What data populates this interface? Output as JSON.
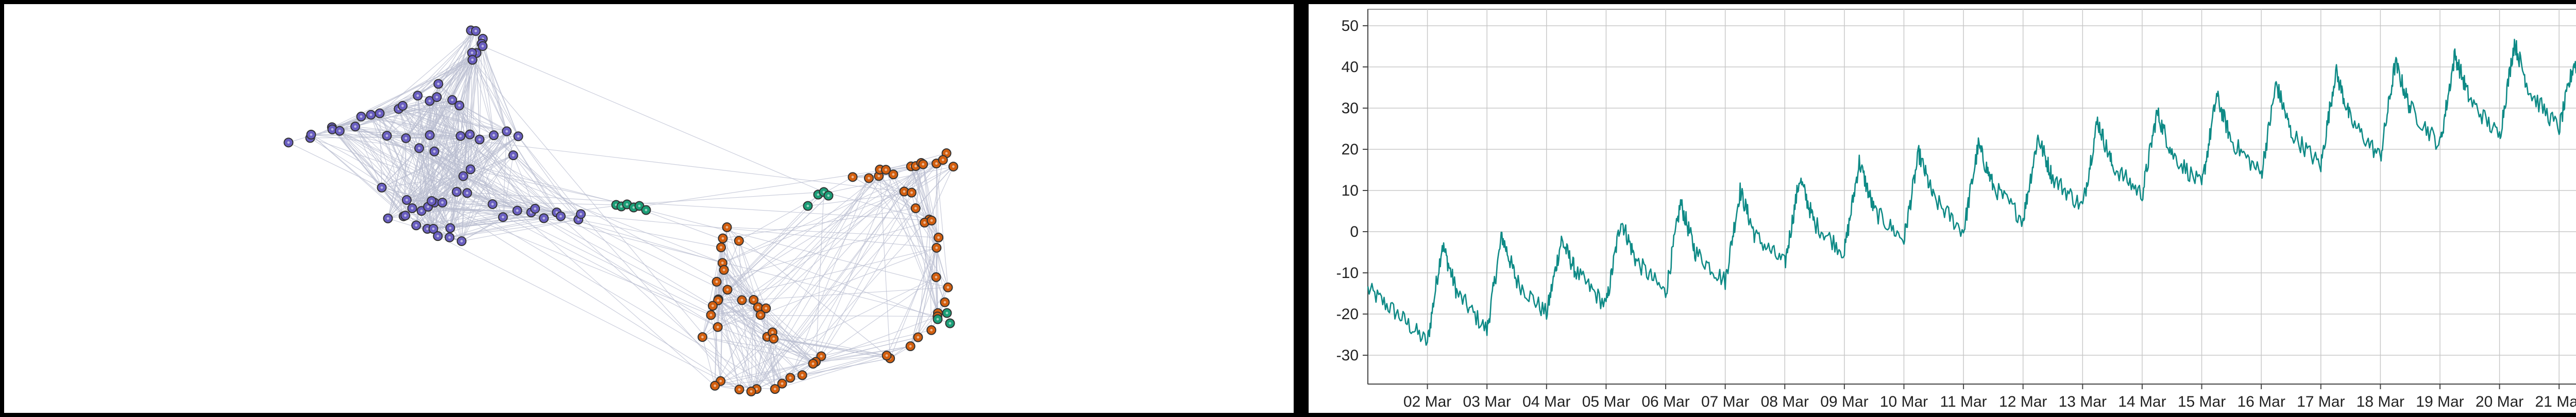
{
  "graph": {
    "colors": {
      "purple": "#6a5fc1",
      "orange": "#d35f0f",
      "green": "#1b9e77",
      "edge": "#b9bdd0",
      "outline": "#333333"
    }
  },
  "chart_data": {
    "type": "line",
    "title": "",
    "xlabel": "",
    "ylabel": "",
    "x_start": "2024-03-01",
    "x_end": "2024-03-21T12:00",
    "x_tick_labels": [
      "02 Mar",
      "03 Mar",
      "04 Mar",
      "05 Mar",
      "06 Mar",
      "07 Mar",
      "08 Mar",
      "09 Mar",
      "10 Mar",
      "11 Mar",
      "12 Mar",
      "13 Mar",
      "14 Mar",
      "15 Mar",
      "16 Mar",
      "17 Mar",
      "18 Mar",
      "19 Mar",
      "20 Mar",
      "21 Mar"
    ],
    "ylim": [
      -37,
      54
    ],
    "y_ticks": [
      -30,
      -20,
      -10,
      0,
      10,
      20,
      30,
      40,
      50
    ],
    "grid": true,
    "line_color": "#0e8a86",
    "series": [
      {
        "values": [
          {
            "x": "2024-03-01T00:00",
            "y": -14
          },
          {
            "x": "2024-03-01T12:00",
            "y": -20
          },
          {
            "x": "2024-03-02T00:00",
            "y": -27
          },
          {
            "x": "2024-03-02T06:00",
            "y": -3
          },
          {
            "x": "2024-03-02T12:00",
            "y": -15
          },
          {
            "x": "2024-03-03T00:00",
            "y": -24
          },
          {
            "x": "2024-03-03T06:00",
            "y": -1
          },
          {
            "x": "2024-03-03T12:00",
            "y": -12
          },
          {
            "x": "2024-03-04T00:00",
            "y": -20
          },
          {
            "x": "2024-03-04T06:00",
            "y": -2
          },
          {
            "x": "2024-03-04T12:00",
            "y": -10
          },
          {
            "x": "2024-03-05T00:00",
            "y": -18
          },
          {
            "x": "2024-03-05T06:00",
            "y": 3
          },
          {
            "x": "2024-03-05T12:00",
            "y": -7
          },
          {
            "x": "2024-03-06T00:00",
            "y": -15
          },
          {
            "x": "2024-03-06T06:00",
            "y": 7
          },
          {
            "x": "2024-03-06T12:00",
            "y": -5
          },
          {
            "x": "2024-03-07T00:00",
            "y": -12
          },
          {
            "x": "2024-03-07T06:00",
            "y": 10
          },
          {
            "x": "2024-03-07T12:00",
            "y": -1
          },
          {
            "x": "2024-03-08T00:00",
            "y": -8
          },
          {
            "x": "2024-03-08T06:00",
            "y": 13
          },
          {
            "x": "2024-03-08T12:00",
            "y": 2
          },
          {
            "x": "2024-03-09T00:00",
            "y": -5
          },
          {
            "x": "2024-03-09T06:00",
            "y": 17
          },
          {
            "x": "2024-03-09T12:00",
            "y": 5
          },
          {
            "x": "2024-03-10T00:00",
            "y": -2
          },
          {
            "x": "2024-03-10T06:00",
            "y": 19
          },
          {
            "x": "2024-03-10T12:00",
            "y": 8
          },
          {
            "x": "2024-03-11T00:00",
            "y": 0
          },
          {
            "x": "2024-03-11T06:00",
            "y": 21
          },
          {
            "x": "2024-03-11T12:00",
            "y": 11
          },
          {
            "x": "2024-03-12T00:00",
            "y": 3
          },
          {
            "x": "2024-03-12T06:00",
            "y": 23
          },
          {
            "x": "2024-03-12T12:00",
            "y": 13
          },
          {
            "x": "2024-03-13T00:00",
            "y": 6
          },
          {
            "x": "2024-03-13T06:00",
            "y": 27
          },
          {
            "x": "2024-03-13T12:00",
            "y": 16
          },
          {
            "x": "2024-03-14T00:00",
            "y": 9
          },
          {
            "x": "2024-03-14T06:00",
            "y": 29
          },
          {
            "x": "2024-03-14T12:00",
            "y": 19
          },
          {
            "x": "2024-03-15T00:00",
            "y": 11
          },
          {
            "x": "2024-03-15T06:00",
            "y": 33
          },
          {
            "x": "2024-03-15T12:00",
            "y": 22
          },
          {
            "x": "2024-03-16T00:00",
            "y": 14
          },
          {
            "x": "2024-03-16T06:00",
            "y": 36
          },
          {
            "x": "2024-03-16T12:00",
            "y": 24
          },
          {
            "x": "2024-03-17T00:00",
            "y": 16
          },
          {
            "x": "2024-03-17T06:00",
            "y": 39
          },
          {
            "x": "2024-03-17T12:00",
            "y": 27
          },
          {
            "x": "2024-03-18T00:00",
            "y": 18
          },
          {
            "x": "2024-03-18T06:00",
            "y": 41
          },
          {
            "x": "2024-03-18T12:00",
            "y": 30
          },
          {
            "x": "2024-03-19T00:00",
            "y": 21
          },
          {
            "x": "2024-03-19T06:00",
            "y": 43
          },
          {
            "x": "2024-03-19T12:00",
            "y": 32
          },
          {
            "x": "2024-03-20T00:00",
            "y": 23
          },
          {
            "x": "2024-03-20T06:00",
            "y": 46
          },
          {
            "x": "2024-03-20T12:00",
            "y": 34
          },
          {
            "x": "2024-03-21T00:00",
            "y": 25
          },
          {
            "x": "2024-03-21T06:00",
            "y": 41
          },
          {
            "x": "2024-03-21T12:00",
            "y": 36
          }
        ]
      }
    ]
  }
}
